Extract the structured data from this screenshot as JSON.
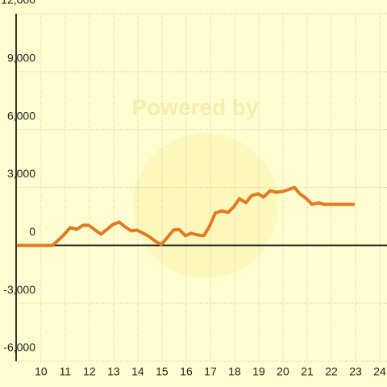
{
  "chart_data": {
    "type": "line",
    "watermark": "Powered by",
    "x": [
      9,
      10.47,
      10.7,
      10.97,
      11.2,
      11.47,
      11.73,
      11.97,
      12.2,
      12.47,
      12.73,
      12.97,
      13.23,
      13.47,
      13.73,
      13.97,
      14.23,
      14.47,
      14.73,
      14.97,
      15.23,
      15.47,
      15.7,
      15.97,
      16.2,
      16.47,
      16.73,
      16.97,
      17.2,
      17.47,
      17.73,
      17.97,
      18.2,
      18.47,
      18.7,
      18.97,
      19.2,
      19.47,
      19.73,
      19.97,
      20.2,
      20.47,
      20.7,
      20.97,
      21.2,
      21.47,
      21.7,
      22.97
    ],
    "series": [
      {
        "color": "#e07b24",
        "values": [
          0,
          0,
          250,
          580,
          920,
          830,
          1040,
          1040,
          830,
          580,
          830,
          1080,
          1210,
          960,
          750,
          790,
          625,
          460,
          210,
          40,
          420,
          790,
          830,
          500,
          625,
          540,
          500,
          1000,
          1670,
          1790,
          1710,
          2000,
          2420,
          2210,
          2580,
          2670,
          2500,
          2830,
          2750,
          2790,
          2875,
          3000,
          2670,
          2420,
          2125,
          2210,
          2125,
          2125
        ]
      }
    ],
    "xlim": [
      8.97,
      24.3
    ],
    "xticks": [
      10,
      11,
      12,
      13,
      14,
      15,
      16,
      17,
      18,
      19,
      20,
      21,
      22,
      23,
      24
    ],
    "ylim": [
      -6000,
      12000
    ],
    "yticks": [
      {
        "value": -6000,
        "label": "-6,000"
      },
      {
        "value": -3000,
        "label": "-3,000"
      },
      0,
      {
        "value": 3000,
        "label": "3,000"
      },
      {
        "value": 6000,
        "label": "6,000"
      },
      {
        "value": 9000,
        "label": "9,000"
      },
      {
        "value": 12000,
        "label": "12,000"
      }
    ],
    "grid": true
  }
}
